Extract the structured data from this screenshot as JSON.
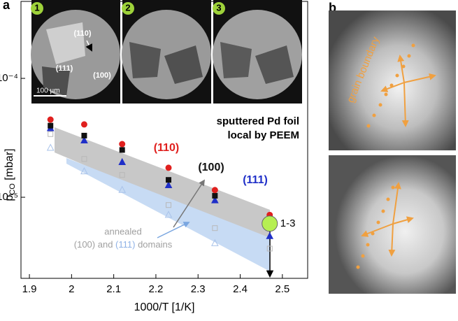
{
  "chart_data": {
    "type": "scatter",
    "panel_labels": [
      "a",
      "b"
    ],
    "ylabel": [
      "p",
      "CO",
      " [mbar]"
    ],
    "xlabel": "1000/T [1/K]",
    "xlim": [
      1.88,
      2.56
    ],
    "xticks": [
      1.9,
      2.0,
      2.1,
      2.2,
      2.3,
      2.4,
      2.5
    ],
    "ylim": [
      2.08e-06,
      0.000444
    ],
    "log_y": true,
    "yticks": [
      {
        "value": 0.0001,
        "label": "10⁻⁴"
      },
      {
        "value": 1e-05,
        "label": "10⁻⁵"
      }
    ],
    "x": [
      1.95,
      2.03,
      2.12,
      2.23,
      2.34,
      2.47
    ],
    "series": [
      {
        "name": "(110)",
        "color": "#e0201e",
        "marker": "circle",
        "filled": true,
        "values": [
          4.5e-05,
          4.1e-05,
          2.8e-05,
          1.77e-05,
          1.15e-05,
          7.1e-06
        ]
      },
      {
        "name": "(100)",
        "color": "#111111",
        "marker": "square",
        "filled": true,
        "values": [
          4e-05,
          3.3e-05,
          2.5e-05,
          1.4e-05,
          1.03e-05,
          6.4e-06
        ]
      },
      {
        "name": "(111)",
        "color": "#1f2fc8",
        "marker": "triangle",
        "filled": true,
        "values": [
          3.8e-05,
          3e-05,
          1.97e-05,
          1.26e-05,
          9.4e-06,
          4.7e-06
        ]
      },
      {
        "name": "(100)",
        "color": "#b8b8b8",
        "marker": "square",
        "filled": false,
        "values": [
          3.4e-05,
          2.1e-05,
          1.54e-05,
          8.6e-06,
          5.5e-06,
          3.7e-06
        ]
      },
      {
        "name": "(111)",
        "color": "#a9c3ea",
        "marker": "triangle",
        "filled": false,
        "values": [
          2.6e-05,
          1.65e-05,
          1.15e-05,
          7.1e-06,
          4.1e-06,
          null
        ]
      }
    ],
    "highlight": {
      "x": 2.47,
      "y": 6e-06,
      "label": "1-3",
      "color": "#b6ef52"
    },
    "annotations": {
      "sample": [
        "sputtered Pd foil",
        "local by PEEM"
      ],
      "annealed": "annealed",
      "and": " and ",
      "domains": " domains"
    },
    "image_labels": {
      "frames": [
        "1",
        "2",
        "3"
      ],
      "grains": [
        "(110)",
        "(111)",
        "(100)"
      ],
      "scale": "100 µm",
      "boundary": "grain boundary"
    }
  }
}
